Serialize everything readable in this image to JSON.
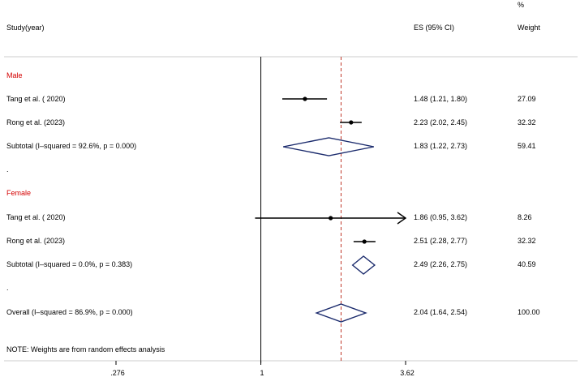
{
  "header": {
    "study": "Study(year)",
    "es": "ES (95% CI)",
    "weight_pct": "%",
    "weight": "Weight"
  },
  "rows": [
    {
      "label": "Male",
      "kind": "group"
    },
    {
      "label": "Tang et al. ( 2020)",
      "kind": "study",
      "es_text": "1.48 (1.21, 1.80)",
      "weight": "27.09"
    },
    {
      "label": "Rong et al. (2023)",
      "kind": "study",
      "es_text": "2.23 (2.02, 2.45)",
      "weight": "32.32"
    },
    {
      "label": "Subtotal  (I–squared = 92.6%, p = 0.000)",
      "kind": "subtotal",
      "es_text": "1.83 (1.22, 2.73)",
      "weight": "59.41"
    },
    {
      "label": ".",
      "kind": "spacer"
    },
    {
      "label": "Female",
      "kind": "group"
    },
    {
      "label": "Tang et al. ( 2020)",
      "kind": "study",
      "es_text": "1.86 (0.95, 3.62)",
      "weight": "8.26"
    },
    {
      "label": "Rong et al. (2023)",
      "kind": "study",
      "es_text": "2.51 (2.28, 2.77)",
      "weight": "32.32"
    },
    {
      "label": "Subtotal  (I–squared = 0.0%, p = 0.383)",
      "kind": "subtotal",
      "es_text": "2.49 (2.26, 2.75)",
      "weight": "40.59"
    },
    {
      "label": ".",
      "kind": "spacer"
    },
    {
      "label": "Overall  (I–squared = 86.9%, p = 0.000)",
      "kind": "overall",
      "es_text": "2.04 (1.64, 2.54)",
      "weight": "100.00"
    }
  ],
  "note": "NOTE: Weights are from random effects analysis",
  "colors": {
    "group_label": "#d40000",
    "diamond": "#1a2a6c",
    "ref_line": "#c0392b",
    "axis": "#000000"
  },
  "chart_data": {
    "type": "forest",
    "scale": "log",
    "xlim": [
      0.276,
      3.62
    ],
    "xticks": [
      0.276,
      1,
      3.62
    ],
    "xtick_labels": [
      ".276",
      "1",
      "3.62"
    ],
    "null_line": 1,
    "overall_line": 2.04,
    "studies": [
      {
        "group": "Male",
        "label": "Tang et al. ( 2020)",
        "es": 1.48,
        "lo": 1.21,
        "hi": 1.8,
        "weight": 27.09
      },
      {
        "group": "Male",
        "label": "Rong et al. (2023)",
        "es": 2.23,
        "lo": 2.02,
        "hi": 2.45,
        "weight": 32.32
      },
      {
        "group": "Female",
        "label": "Tang et al. ( 2020)",
        "es": 1.86,
        "lo": 0.95,
        "hi": 3.62,
        "weight": 8.26,
        "arrow_right": true
      },
      {
        "group": "Female",
        "label": "Rong et al. (2023)",
        "es": 2.51,
        "lo": 2.28,
        "hi": 2.77,
        "weight": 32.32
      }
    ],
    "subtotals": [
      {
        "group": "Male",
        "es": 1.83,
        "lo": 1.22,
        "hi": 2.73,
        "weight": 59.41
      },
      {
        "group": "Female",
        "es": 2.49,
        "lo": 2.26,
        "hi": 2.75,
        "weight": 40.59
      }
    ],
    "overall": {
      "es": 2.04,
      "lo": 1.64,
      "hi": 2.54,
      "weight": 100.0
    }
  }
}
